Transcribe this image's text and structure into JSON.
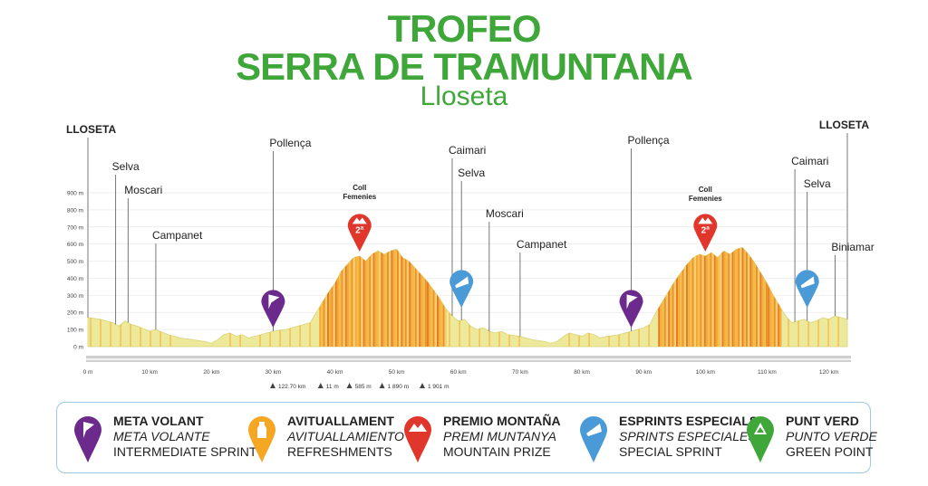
{
  "header": {
    "title_line1": "TROFEO",
    "title_line2": "SERRA DE TRAMUNTANA",
    "subtitle": "Lloseta"
  },
  "chart_data": {
    "type": "area",
    "title": "",
    "xlabel": "",
    "ylabel": "",
    "xlim": [
      0,
      123
    ],
    "ylim": [
      0,
      900
    ],
    "x_ticks": [
      0,
      10,
      20,
      30,
      40,
      50,
      60,
      70,
      80,
      90,
      100,
      110,
      120
    ],
    "x_tick_labels": [
      "0 m",
      "10 km",
      "20 km",
      "30 km",
      "40 km",
      "50 km",
      "60 km",
      "70 km",
      "80 km",
      "90 km",
      "100 km",
      "110 km",
      "120 km"
    ],
    "y_ticks": [
      0,
      100,
      200,
      300,
      400,
      500,
      600,
      700,
      800,
      900
    ],
    "y_tick_labels": [
      "0 m",
      "100 m",
      "200 m",
      "300 m",
      "400 m",
      "500 m",
      "600 m",
      "700 m",
      "800 m",
      "900 m"
    ],
    "elevation": {
      "x": [
        0,
        2,
        4,
        5,
        6,
        7,
        8,
        10,
        11,
        13,
        15,
        17,
        19,
        20,
        21,
        22,
        23,
        24,
        25,
        26,
        27,
        28,
        29,
        30,
        32,
        34,
        36,
        37,
        38,
        39,
        40,
        41,
        42,
        43,
        44,
        45,
        46,
        47,
        48,
        49,
        50,
        51,
        52,
        53,
        54,
        55,
        56,
        57,
        58,
        59,
        60,
        61,
        62,
        63,
        64,
        65,
        66,
        67,
        68,
        70,
        72,
        74,
        75,
        76,
        77,
        78,
        79,
        80,
        81,
        82,
        83,
        84,
        86,
        88,
        90,
        91,
        92,
        93,
        94,
        95,
        96,
        97,
        98,
        99,
        100,
        101,
        102,
        103,
        104,
        105,
        106,
        107,
        108,
        109,
        110,
        111,
        112,
        113,
        114,
        115,
        116,
        117,
        118,
        119,
        120,
        121,
        122,
        123
      ],
      "y": [
        170,
        160,
        140,
        120,
        150,
        130,
        120,
        90,
        100,
        70,
        50,
        40,
        30,
        20,
        40,
        70,
        80,
        60,
        70,
        50,
        60,
        70,
        80,
        90,
        100,
        120,
        140,
        200,
        260,
        320,
        370,
        440,
        480,
        520,
        530,
        500,
        540,
        560,
        540,
        560,
        570,
        520,
        500,
        460,
        420,
        380,
        330,
        280,
        220,
        180,
        150,
        160,
        120,
        100,
        110,
        90,
        80,
        90,
        70,
        60,
        40,
        30,
        20,
        30,
        60,
        80,
        70,
        60,
        80,
        70,
        50,
        60,
        70,
        90,
        110,
        130,
        200,
        260,
        320,
        380,
        430,
        480,
        520,
        540,
        530,
        550,
        520,
        560,
        540,
        570,
        580,
        540,
        490,
        430,
        370,
        300,
        240,
        180,
        140,
        150,
        160,
        140,
        150,
        170,
        160,
        180,
        170,
        160
      ]
    },
    "places": [
      {
        "name": "LLOSETA",
        "km": 0
      },
      {
        "name": "Selva",
        "km": 4.5
      },
      {
        "name": "Moscari",
        "km": 6.5
      },
      {
        "name": "Campanet",
        "km": 11
      },
      {
        "name": "Pollença",
        "km": 30
      },
      {
        "name": "Coll Femenies",
        "km": 44
      },
      {
        "name": "Caimari",
        "km": 59
      },
      {
        "name": "Selva",
        "km": 60.5
      },
      {
        "name": "Moscari",
        "km": 65
      },
      {
        "name": "Campanet",
        "km": 70
      },
      {
        "name": "Pollença",
        "km": 88
      },
      {
        "name": "Coll Femenies",
        "km": 100
      },
      {
        "name": "Caimari",
        "km": 114.5
      },
      {
        "name": "Selva",
        "km": 116.5
      },
      {
        "name": "Biniamar",
        "km": 121
      },
      {
        "name": "LLOSETA",
        "km": 123
      }
    ],
    "markers": [
      {
        "type": "meta-volant",
        "km": 30,
        "label": ""
      },
      {
        "type": "premio-montana",
        "km": 44,
        "label": "2ª"
      },
      {
        "type": "esprints-especials",
        "km": 60.5,
        "label": ""
      },
      {
        "type": "meta-volant",
        "km": 88,
        "label": ""
      },
      {
        "type": "premio-montana",
        "km": 100,
        "label": "2ª"
      },
      {
        "type": "esprints-especials",
        "km": 116.5,
        "label": ""
      }
    ],
    "stats": [
      "122.70 km",
      "11 m",
      "585 m",
      "1 890 m",
      "1 901 m"
    ]
  },
  "legend": [
    {
      "id": "meta-volant",
      "color": "#6b2a8c",
      "line1": "META VOLANT",
      "line2": "META VOLANTE",
      "line3": "INTERMEDIATE SPRINT"
    },
    {
      "id": "avituallament",
      "color": "#f5a623",
      "line1": "AVITUALLAMENT",
      "line2": "AVITUALLAMIENTO",
      "line3": "REFRESHMENTS"
    },
    {
      "id": "premio-montana",
      "color": "#e0362c",
      "line1": "PREMIO MONTAÑA",
      "line2": "PREMI MUNTANYA",
      "line3": "MOUNTAIN PRIZE"
    },
    {
      "id": "esprints-especials",
      "color": "#4a9ad8",
      "line1": "ESPRINTS ESPECIALS",
      "line2": "SPRINTS ESPECIALES",
      "line3": "SPECIAL SPRINT"
    },
    {
      "id": "punt-verd",
      "color": "#3fa73a",
      "line1": "PUNT VERD",
      "line2": "PUNTO VERDE",
      "line3": "GREEN POINT"
    }
  ]
}
